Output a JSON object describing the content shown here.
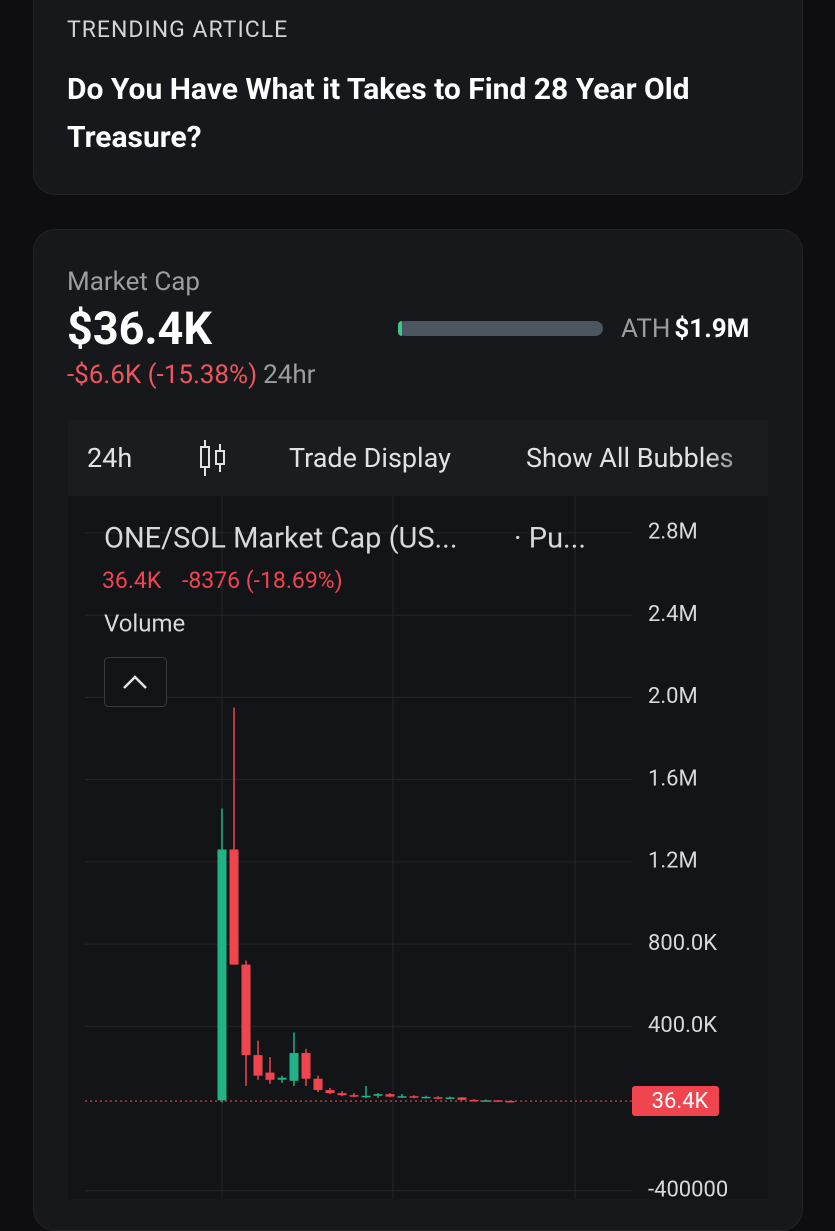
{
  "trending": {
    "label": "TRENDING ARTICLE",
    "title": "Do You Have What it Takes to Find 28 Year Old Treasure?"
  },
  "market": {
    "label": "Market Cap",
    "value": "$36.4K",
    "change": "-$6.6K (-15.38%)",
    "period": "24hr",
    "ath_label": "ATH",
    "ath_value": "$1.9M"
  },
  "toolbar": [
    "24h",
    "Trade Display",
    "Show All Bubbles"
  ],
  "chart_data": {
    "type": "candlestick",
    "title": "ONE/SOL Market Cap (US...",
    "source": "· Pu...",
    "last_label": "36.4K",
    "last_value": 36400,
    "change": "-8376 (-18.69%)",
    "volume_label": "Volume",
    "up_color": "#1fb386",
    "down_color": "#f0444f",
    "grid": true,
    "ylim": [
      -440000,
      2960000
    ],
    "yticks": [
      {
        "value": 2800000,
        "label": "2.8M"
      },
      {
        "value": 2400000,
        "label": "2.4M"
      },
      {
        "value": 2000000,
        "label": "2.0M"
      },
      {
        "value": 1600000,
        "label": "1.6M"
      },
      {
        "value": 1200000,
        "label": "1.2M"
      },
      {
        "value": 800000,
        "label": "800.0K"
      },
      {
        "value": 400000,
        "label": "400.0K"
      },
      -400000
    ],
    "categories": [
      null,
      null,
      null,
      null,
      null,
      null,
      null,
      null,
      null,
      null,
      null,
      null,
      null,
      null,
      null,
      null,
      null,
      null,
      null,
      null,
      null,
      null,
      null,
      null,
      null
    ],
    "open": [
      40000,
      1260000,
      700000,
      260000,
      175000,
      140000,
      135000,
      270000,
      145000,
      90000,
      75000,
      65000,
      55000,
      62000,
      70000,
      58000,
      60000,
      55000,
      55000,
      52000,
      54000,
      42000,
      38000,
      40000,
      37000
    ],
    "high": [
      1460000,
      1950000,
      720000,
      330000,
      250000,
      160000,
      370000,
      290000,
      160000,
      100000,
      85000,
      75000,
      110000,
      75000,
      75000,
      70000,
      65000,
      62000,
      60000,
      58000,
      56000,
      46000,
      44000,
      42000,
      39000
    ],
    "low": [
      30000,
      700000,
      110000,
      140000,
      120000,
      125000,
      110000,
      110000,
      80000,
      70000,
      60000,
      55000,
      50000,
      52000,
      55000,
      52000,
      50000,
      50000,
      48000,
      46000,
      40000,
      36000,
      36000,
      34000,
      35000
    ],
    "close": [
      1260000,
      700000,
      260000,
      160000,
      140000,
      150000,
      270000,
      145000,
      90000,
      75000,
      65000,
      58000,
      62000,
      70000,
      58000,
      60000,
      55000,
      57000,
      52000,
      54000,
      42000,
      38000,
      40000,
      37000,
      36400
    ]
  }
}
